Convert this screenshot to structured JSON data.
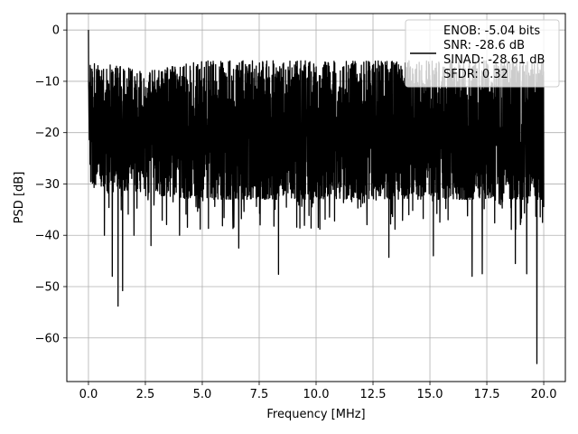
{
  "chart_data": {
    "type": "line",
    "xlabel": "Frequency [MHz]",
    "ylabel": "PSD [dB]",
    "xlim": [
      -0.95,
      20.95
    ],
    "ylim": [
      -68.5,
      3.2
    ],
    "x_ticks": [
      0.0,
      2.5,
      5.0,
      7.5,
      10.0,
      12.5,
      15.0,
      17.5,
      20.0
    ],
    "x_tick_labels": [
      "0.0",
      "2.5",
      "5.0",
      "7.5",
      "10.0",
      "12.5",
      "15.0",
      "17.5",
      "20.0"
    ],
    "y_ticks": [
      0,
      -10,
      -20,
      -30,
      -40,
      -50,
      -60
    ],
    "y_tick_labels": [
      "0",
      "−10",
      "−20",
      "−30",
      "−40",
      "−50",
      "−60"
    ],
    "grid": true,
    "legend_position": "top-right",
    "series": [
      {
        "line_color": "#000000",
        "legend_lines": [
          "ENOB: -5.04 bits",
          "SNR: -28.6 dB",
          "SINAD: -28.61 dB",
          "SFDR: 0.32"
        ],
        "x_range": [
          0.0,
          20.0
        ],
        "noise_band_mhz": [
          [
            0.0,
            -6,
            -30
          ],
          [
            2.5,
            -8,
            -32
          ],
          [
            5.0,
            -6,
            -33
          ],
          [
            7.5,
            -6,
            -33
          ],
          [
            10.0,
            -6,
            -33
          ],
          [
            12.5,
            -6,
            -33
          ],
          [
            15.0,
            -6,
            -33
          ],
          [
            17.5,
            -6,
            -33
          ],
          [
            20.0,
            -6,
            -33
          ]
        ],
        "peak": {
          "x": 0.0,
          "y": 0
        },
        "dips": [
          {
            "x": 1.05,
            "y": -48
          },
          {
            "x": 1.3,
            "y": -53.8
          },
          {
            "x": 1.5,
            "y": -50.8
          },
          {
            "x": 0.7,
            "y": -40
          },
          {
            "x": 2.0,
            "y": -40
          },
          {
            "x": 2.75,
            "y": -42
          },
          {
            "x": 4.0,
            "y": -40
          },
          {
            "x": 6.6,
            "y": -42.5
          },
          {
            "x": 8.35,
            "y": -47.6
          },
          {
            "x": 13.2,
            "y": -44.3
          },
          {
            "x": 15.15,
            "y": -44
          },
          {
            "x": 16.85,
            "y": -48
          },
          {
            "x": 17.3,
            "y": -47.5
          },
          {
            "x": 18.75,
            "y": -45.5
          },
          {
            "x": 19.25,
            "y": -47.5
          },
          {
            "x": 19.7,
            "y": -65
          }
        ]
      }
    ]
  }
}
